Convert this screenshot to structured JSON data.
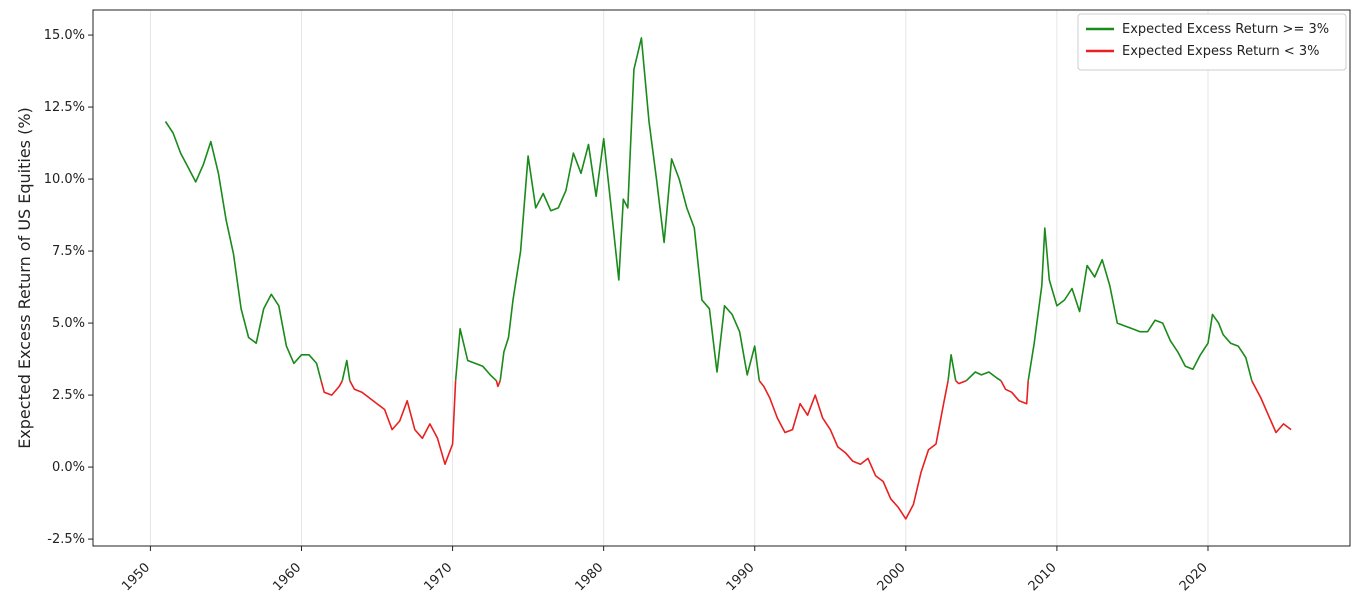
{
  "chart_data": {
    "type": "line",
    "y_label": "Expected Excess Return of US Equities (%)",
    "x": [
      1951,
      1951.5,
      1952,
      1952.5,
      1953,
      1953.5,
      1954,
      1954.5,
      1955,
      1955.5,
      1956,
      1956.5,
      1957,
      1957.5,
      1958,
      1958.5,
      1959,
      1959.5,
      1960,
      1960.5,
      1961,
      1961.3,
      1961.5,
      1962,
      1962.5,
      1962.7,
      1963,
      1963.2,
      1963.5,
      1964,
      1964.5,
      1965,
      1965.5,
      1966,
      1966.5,
      1967,
      1967.5,
      1968,
      1968.5,
      1969,
      1969.5,
      1970,
      1970.2,
      1970.5,
      1971,
      1971.5,
      1972,
      1972.5,
      1972.9,
      1973,
      1973.15,
      1973.4,
      1973.7,
      1974,
      1974.5,
      1975,
      1975.5,
      1976,
      1976.5,
      1977,
      1977.5,
      1978,
      1978.5,
      1979,
      1979.5,
      1980,
      1980.5,
      1981,
      1981.3,
      1981.6,
      1982,
      1982.5,
      1983,
      1983.5,
      1984,
      1984.5,
      1985,
      1985.5,
      1986,
      1986.5,
      1987,
      1987.5,
      1988,
      1988.5,
      1989,
      1989.5,
      1990,
      1990.3,
      1990.6,
      1991,
      1991.5,
      1992,
      1992.5,
      1993,
      1993.5,
      1994,
      1994.5,
      1995,
      1995.5,
      1996,
      1996.5,
      1997,
      1997.5,
      1998,
      1998.5,
      1999,
      1999.5,
      2000,
      2000.5,
      2001,
      2001.5,
      2002,
      2002.5,
      2002.8,
      2003,
      2003.3,
      2003.5,
      2004,
      2004.6,
      2005,
      2005.5,
      2006,
      2006.3,
      2006.6,
      2007,
      2007.5,
      2008,
      2008.1,
      2008.5,
      2009,
      2009.2,
      2009.5,
      2010,
      2010.5,
      2011,
      2011.5,
      2012,
      2012.5,
      2013,
      2013.5,
      2014,
      2014.5,
      2015,
      2015.5,
      2016,
      2016.5,
      2017,
      2017.5,
      2018,
      2018.5,
      2019,
      2019.5,
      2020,
      2020.3,
      2020.7,
      2021,
      2021.5,
      2022,
      2022.5,
      2022.9,
      2023,
      2023.5,
      2024,
      2024.5,
      2025,
      2025.5
    ],
    "series": [
      {
        "name": "Expected Excess Return >= 3%",
        "color": "#1a8a1a",
        "values": [
          12.0,
          11.6,
          10.9,
          10.4,
          9.9,
          10.5,
          11.3,
          10.2,
          8.6,
          7.4,
          5.5,
          4.5,
          4.3,
          5.5,
          6.0,
          5.6,
          4.2,
          3.6,
          3.9,
          3.9,
          3.6,
          3.0,
          null,
          null,
          null,
          3.0,
          3.7,
          3.0,
          null,
          null,
          null,
          null,
          null,
          null,
          null,
          null,
          null,
          null,
          null,
          null,
          null,
          null,
          3.0,
          4.8,
          3.7,
          3.6,
          3.5,
          3.2,
          3.0,
          null,
          3.0,
          4.0,
          4.5,
          5.8,
          7.5,
          10.8,
          9.0,
          9.5,
          8.9,
          9.0,
          9.6,
          10.9,
          10.2,
          11.2,
          9.4,
          11.4,
          9.0,
          6.5,
          9.3,
          9.0,
          13.8,
          14.9,
          12.0,
          10.0,
          7.8,
          10.7,
          10.0,
          9.0,
          8.3,
          5.8,
          5.5,
          3.3,
          5.6,
          5.3,
          4.7,
          3.2,
          4.2,
          3.0,
          null,
          null,
          null,
          null,
          null,
          null,
          null,
          null,
          null,
          null,
          null,
          null,
          null,
          null,
          null,
          null,
          null,
          null,
          null,
          null,
          null,
          null,
          null,
          null,
          null,
          3.0,
          3.9,
          3.0,
          null,
          3.0,
          3.3,
          3.2,
          3.3,
          3.1,
          3.0,
          null,
          null,
          null,
          null,
          3.0,
          4.3,
          6.3,
          8.3,
          6.5,
          5.6,
          5.8,
          6.2,
          5.4,
          7.0,
          6.6,
          7.2,
          6.3,
          5.0,
          4.9,
          4.8,
          4.7,
          4.7,
          5.1,
          5.0,
          4.4,
          4.0,
          3.5,
          3.4,
          3.9,
          4.3,
          5.3,
          5.0,
          4.6,
          4.3,
          4.2,
          3.8,
          3.0,
          null,
          null,
          null,
          null,
          null,
          null
        ]
      },
      {
        "name": "Expected Expess Return < 3%",
        "color": "#e82020",
        "values": [
          null,
          null,
          null,
          null,
          null,
          null,
          null,
          null,
          null,
          null,
          null,
          null,
          null,
          null,
          null,
          null,
          null,
          null,
          null,
          null,
          null,
          3.0,
          2.6,
          2.5,
          2.8,
          3.0,
          null,
          3.0,
          2.7,
          2.6,
          2.4,
          2.2,
          2.0,
          1.3,
          1.6,
          2.3,
          1.3,
          1.0,
          1.5,
          1.0,
          0.1,
          0.8,
          3.0,
          null,
          null,
          null,
          null,
          null,
          3.0,
          2.8,
          3.0,
          null,
          null,
          null,
          null,
          null,
          null,
          null,
          null,
          null,
          null,
          null,
          null,
          null,
          null,
          null,
          null,
          null,
          null,
          null,
          null,
          null,
          null,
          null,
          null,
          null,
          null,
          null,
          null,
          null,
          null,
          null,
          null,
          null,
          null,
          null,
          null,
          3.0,
          2.8,
          2.4,
          1.7,
          1.2,
          1.3,
          2.2,
          1.8,
          2.5,
          1.7,
          1.3,
          0.7,
          0.5,
          0.2,
          0.1,
          0.3,
          -0.3,
          -0.5,
          -1.1,
          -1.4,
          -1.8,
          -1.3,
          -0.2,
          0.6,
          0.8,
          2.2,
          3.0,
          null,
          3.0,
          2.9,
          3.0,
          null,
          null,
          null,
          null,
          3.0,
          2.7,
          2.6,
          2.3,
          2.2,
          3.0,
          null,
          null,
          null,
          null,
          null,
          null,
          null,
          null,
          null,
          null,
          null,
          null,
          null,
          null,
          null,
          null,
          null,
          null,
          null,
          null,
          null,
          null,
          null,
          null,
          null,
          null,
          null,
          null,
          null,
          null,
          null,
          3.0,
          2.9,
          2.4,
          1.8,
          1.2,
          1.5,
          1.3
        ]
      }
    ],
    "xlim": [
      1946.2,
      2029.4
    ],
    "ylim": [
      -2.74,
      15.87
    ],
    "xticks": [
      1950,
      1960,
      1970,
      1980,
      1990,
      2000,
      2010,
      2020
    ],
    "yticks": [
      {
        "value": -2.5,
        "label": "-2.5%"
      },
      {
        "value": 0,
        "label": "0.0%"
      },
      {
        "value": 2.5,
        "label": "2.5%"
      },
      {
        "value": 5,
        "label": "5.0%"
      },
      {
        "value": 7.5,
        "label": "7.5%"
      },
      {
        "value": 10,
        "label": "10.0%"
      },
      {
        "value": 12.5,
        "label": "12.5%"
      },
      {
        "value": 15,
        "label": "15.0%"
      }
    ],
    "grid": true,
    "legend": "upper right"
  }
}
